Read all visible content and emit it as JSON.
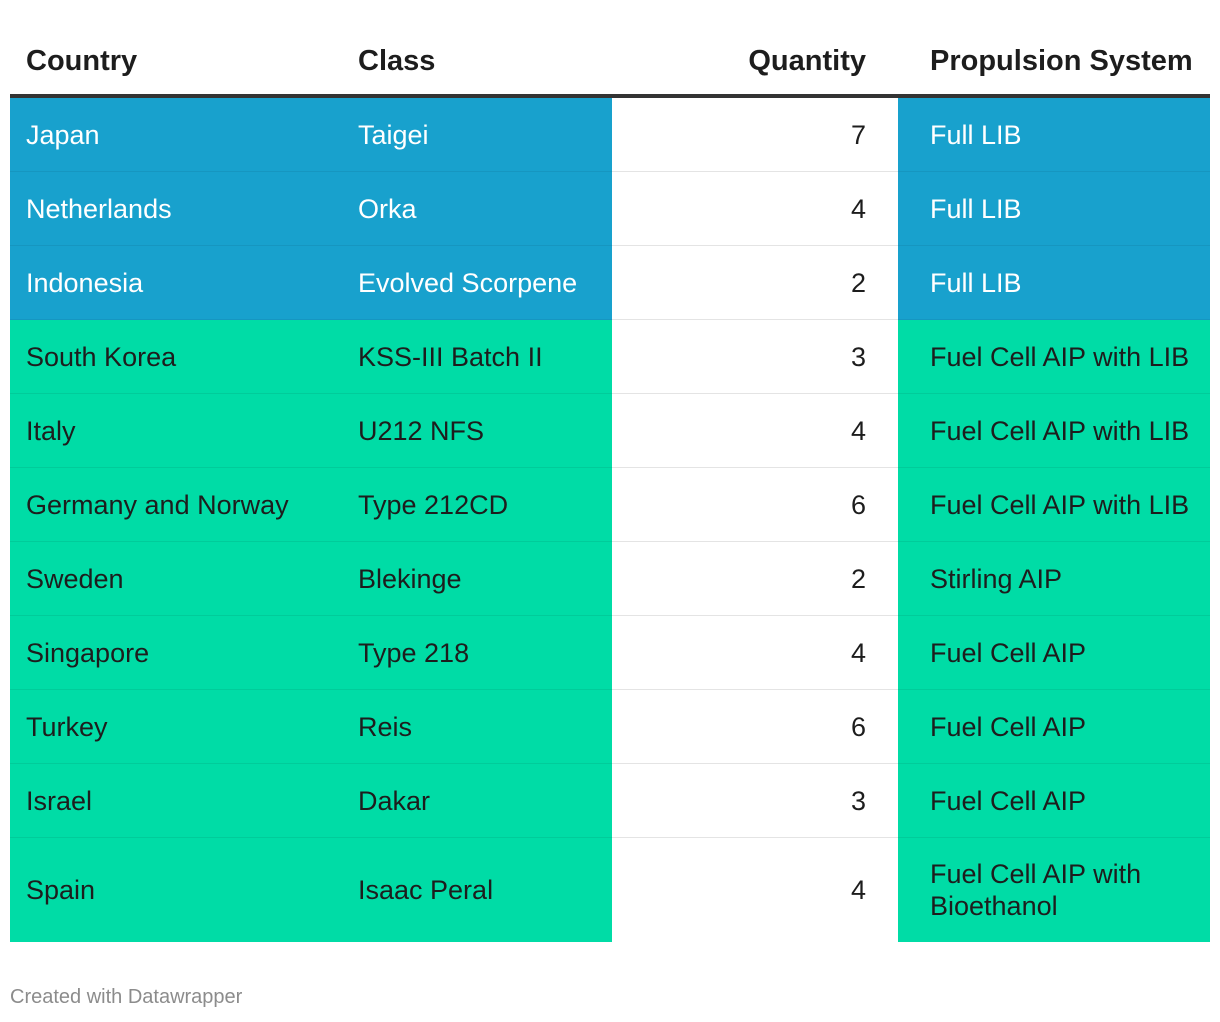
{
  "headers": {
    "country": "Country",
    "class": "Class",
    "quantity": "Quantity",
    "propulsion": "Propulsion System"
  },
  "rows": [
    {
      "country": "Japan",
      "class": "Taigei",
      "quantity": "7",
      "propulsion": "Full LIB",
      "group": "lib"
    },
    {
      "country": "Netherlands",
      "class": "Orka",
      "quantity": "4",
      "propulsion": "Full LIB",
      "group": "lib"
    },
    {
      "country": "Indonesia",
      "class": "Evolved Scorpene",
      "quantity": "2",
      "propulsion": "Full LIB",
      "group": "lib"
    },
    {
      "country": "South Korea",
      "class": "KSS-III Batch II",
      "quantity": "3",
      "propulsion": "Fuel Cell AIP with LIB",
      "group": "aip"
    },
    {
      "country": "Italy",
      "class": "U212 NFS",
      "quantity": "4",
      "propulsion": "Fuel Cell AIP with LIB",
      "group": "aip"
    },
    {
      "country": "Germany and Norway",
      "class": "Type 212CD",
      "quantity": "6",
      "propulsion": "Fuel Cell AIP with LIB",
      "group": "aip"
    },
    {
      "country": "Sweden",
      "class": "Blekinge",
      "quantity": "2",
      "propulsion": "Stirling AIP",
      "group": "aip"
    },
    {
      "country": "Singapore",
      "class": "Type 218",
      "quantity": "4",
      "propulsion": "Fuel Cell AIP",
      "group": "aip"
    },
    {
      "country": "Turkey",
      "class": "Reis",
      "quantity": "6",
      "propulsion": "Fuel Cell AIP",
      "group": "aip"
    },
    {
      "country": "Israel",
      "class": "Dakar",
      "quantity": "3",
      "propulsion": "Fuel Cell AIP",
      "group": "aip"
    },
    {
      "country": "Spain",
      "class": "Isaac Peral",
      "quantity": "4",
      "propulsion": "Fuel Cell AIP with Bioethanol",
      "group": "aip"
    }
  ],
  "colors": {
    "lib": "#18a1cd",
    "aip": "#00dca6",
    "header_rule": "#333333"
  },
  "footer": "Created with Datawrapper"
}
